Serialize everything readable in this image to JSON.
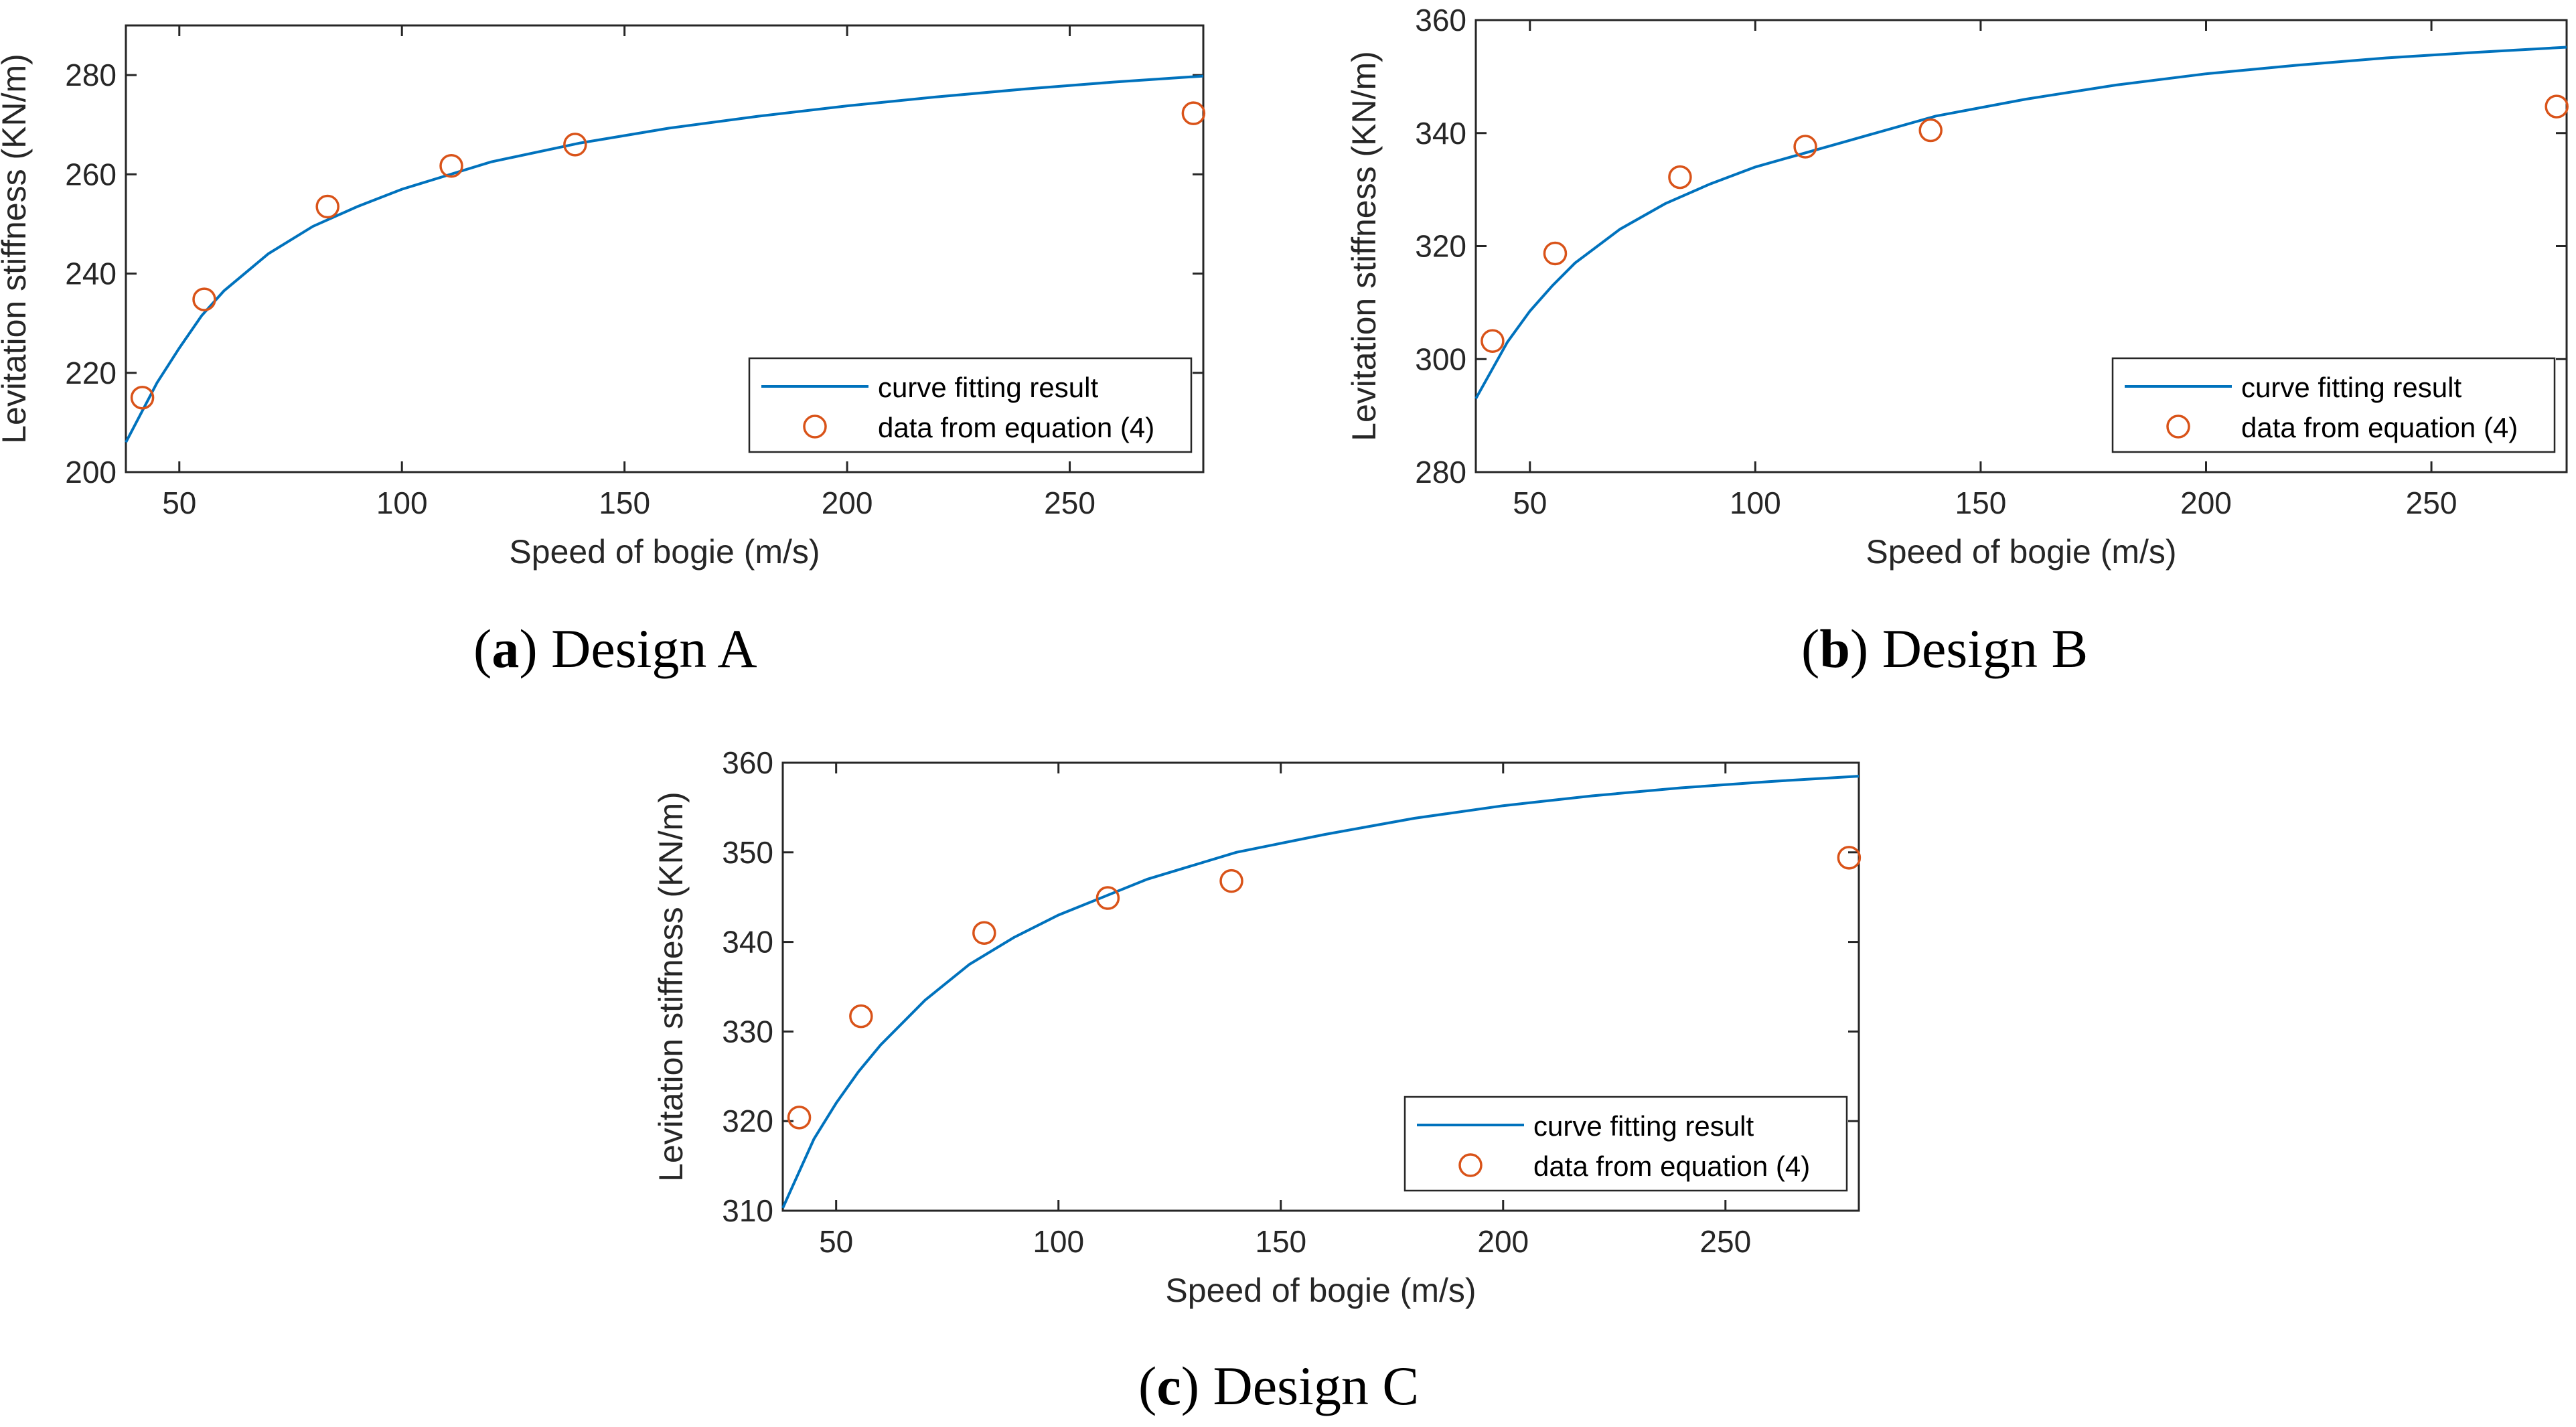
{
  "colors": {
    "curve": "#0072BD",
    "markers": "#D95319",
    "axes": "#262626"
  },
  "chart_data": [
    {
      "id": "a",
      "type": "line",
      "caption_letter": "a",
      "caption_text": "Design A",
      "xlabel": "Speed of bogie (m/s)",
      "ylabel": "Levitation stiffness (KN/m)",
      "xlim": [
        38,
        280
      ],
      "ylim": [
        200,
        290
      ],
      "xticks": [
        50,
        100,
        150,
        200,
        250
      ],
      "yticks": [
        200,
        220,
        240,
        260,
        280
      ],
      "legend": {
        "location": "bottom-right",
        "entries": [
          "curve fitting result",
          "data from equation (4)"
        ]
      },
      "series": [
        {
          "name": "curve fitting result",
          "style": "line",
          "x": [
            38,
            45,
            50,
            55,
            60,
            70,
            80,
            90,
            100,
            120,
            140,
            160,
            180,
            200,
            220,
            240,
            260,
            280
          ],
          "y": [
            206,
            218,
            225,
            231.5,
            236.5,
            244,
            249.5,
            253.5,
            257,
            262.5,
            266.3,
            269.3,
            271.7,
            273.8,
            275.6,
            277.2,
            278.6,
            279.8
          ]
        },
        {
          "name": "data from equation (4)",
          "style": "marker",
          "x": [
            41.7,
            55.6,
            83.3,
            111.1,
            138.9,
            277.8
          ],
          "y": [
            215,
            234.8,
            253.5,
            261.7,
            266,
            272.3
          ]
        }
      ]
    },
    {
      "id": "b",
      "type": "line",
      "caption_letter": "b",
      "caption_text": "Design B",
      "xlabel": "Speed of bogie (m/s)",
      "ylabel": "Levitation stiffness (KN/m)",
      "xlim": [
        38,
        280
      ],
      "ylim": [
        280,
        360
      ],
      "xticks": [
        50,
        100,
        150,
        200,
        250
      ],
      "yticks": [
        280,
        300,
        320,
        340,
        360
      ],
      "legend": {
        "location": "bottom-right",
        "entries": [
          "curve fitting result",
          "data from equation (4)"
        ]
      },
      "series": [
        {
          "name": "curve fitting result",
          "style": "line",
          "x": [
            38,
            45,
            50,
            55,
            60,
            70,
            80,
            90,
            100,
            120,
            140,
            160,
            180,
            200,
            220,
            240,
            260,
            280
          ],
          "y": [
            293,
            303,
            308.5,
            313,
            317,
            323,
            327.5,
            331,
            334,
            338.5,
            343,
            346,
            348.5,
            350.5,
            352,
            353.3,
            354.3,
            355.2
          ]
        },
        {
          "name": "data from equation (4)",
          "style": "marker",
          "x": [
            41.7,
            55.6,
            83.3,
            111.1,
            138.9,
            277.8
          ],
          "y": [
            303.2,
            318.7,
            332.2,
            337.6,
            340.5,
            344.7
          ]
        }
      ]
    },
    {
      "id": "c",
      "type": "line",
      "caption_letter": "c",
      "caption_text": "Design C",
      "xlabel": "Speed of bogie (m/s)",
      "ylabel": "Levitation stiffness (KN/m)",
      "xlim": [
        38,
        280
      ],
      "ylim": [
        310,
        360
      ],
      "xticks": [
        50,
        100,
        150,
        200,
        250
      ],
      "yticks": [
        310,
        320,
        330,
        340,
        350,
        360
      ],
      "legend": {
        "location": "bottom-right",
        "entries": [
          "curve fitting result",
          "data from equation (4)"
        ]
      },
      "series": [
        {
          "name": "curve fitting result",
          "style": "line",
          "x": [
            38,
            45,
            50,
            55,
            60,
            70,
            80,
            90,
            100,
            120,
            140,
            160,
            180,
            200,
            220,
            240,
            260,
            280
          ],
          "y": [
            310.3,
            318,
            322,
            325.5,
            328.5,
            333.5,
            337.5,
            340.5,
            343,
            347,
            350,
            352,
            353.8,
            355.2,
            356.3,
            357.2,
            357.9,
            358.5
          ]
        },
        {
          "name": "data from equation (4)",
          "style": "marker",
          "x": [
            41.7,
            55.6,
            83.3,
            111.1,
            138.9,
            277.8
          ],
          "y": [
            320.4,
            331.7,
            341,
            344.9,
            346.8,
            349.4
          ]
        }
      ]
    }
  ]
}
